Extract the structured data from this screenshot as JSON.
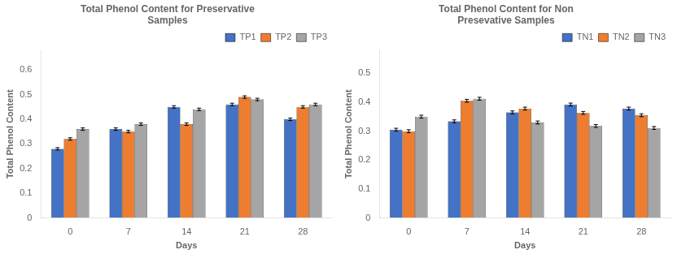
{
  "chart_data": [
    {
      "type": "bar",
      "title": "Total Phenol Content for Preservative\nSamples",
      "xlabel": "Days",
      "ylabel": "Total Phenol Content",
      "categories": [
        "0",
        "7",
        "14",
        "21",
        "28"
      ],
      "series": [
        {
          "name": "TP1",
          "color": "#4472C4",
          "values": [
            0.28,
            0.36,
            0.45,
            0.46,
            0.4
          ],
          "errors": [
            0.005,
            0.005,
            0.005,
            0.005,
            0.005
          ]
        },
        {
          "name": "TP2",
          "color": "#ED7D31",
          "values": [
            0.32,
            0.35,
            0.38,
            0.49,
            0.45
          ],
          "errors": [
            0.005,
            0.005,
            0.005,
            0.005,
            0.005
          ]
        },
        {
          "name": "TP3",
          "color": "#A5A5A5",
          "values": [
            0.36,
            0.38,
            0.44,
            0.48,
            0.46
          ],
          "errors": [
            0.005,
            0.005,
            0.005,
            0.005,
            0.005
          ]
        }
      ],
      "ylim": [
        0,
        0.68
      ],
      "yticks": [
        0,
        0.1,
        0.2,
        0.3,
        0.4,
        0.5,
        0.6
      ],
      "grid": false,
      "legend": "upper right"
    },
    {
      "type": "bar",
      "title": "Total Phenol Content for Non\nPresevative Samples",
      "xlabel": "Days",
      "ylabel": "Total Phenol Content",
      "categories": [
        "0",
        "7",
        "14",
        "21",
        "28"
      ],
      "series": [
        {
          "name": "TN1",
          "color": "#4472C4",
          "values": [
            0.305,
            0.334,
            0.365,
            0.392,
            0.378
          ],
          "errors": [
            0.005,
            0.005,
            0.005,
            0.005,
            0.005
          ]
        },
        {
          "name": "TN2",
          "color": "#ED7D31",
          "values": [
            0.3,
            0.405,
            0.378,
            0.363,
            0.355
          ],
          "errors": [
            0.005,
            0.005,
            0.005,
            0.005,
            0.005
          ]
        },
        {
          "name": "TN3",
          "color": "#A5A5A5",
          "values": [
            0.35,
            0.412,
            0.33,
            0.318,
            0.311
          ],
          "errors": [
            0.005,
            0.005,
            0.005,
            0.005,
            0.005
          ]
        }
      ],
      "ylim": [
        0,
        0.58
      ],
      "yticks": [
        0,
        0.1,
        0.2,
        0.3,
        0.4,
        0.5
      ],
      "grid": false,
      "legend": "upper right"
    }
  ]
}
